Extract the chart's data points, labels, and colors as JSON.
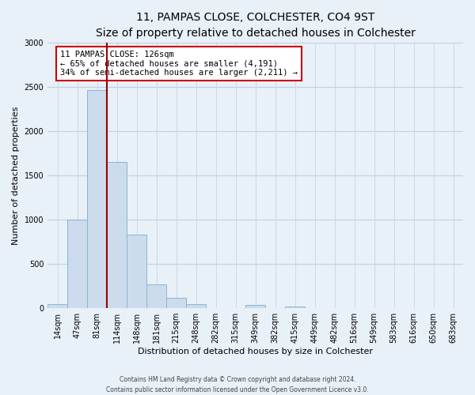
{
  "title": "11, PAMPAS CLOSE, COLCHESTER, CO4 9ST",
  "subtitle": "Size of property relative to detached houses in Colchester",
  "xlabel": "Distribution of detached houses by size in Colchester",
  "ylabel": "Number of detached properties",
  "bar_labels": [
    "14sqm",
    "47sqm",
    "81sqm",
    "114sqm",
    "148sqm",
    "181sqm",
    "215sqm",
    "248sqm",
    "282sqm",
    "315sqm",
    "349sqm",
    "382sqm",
    "415sqm",
    "449sqm",
    "482sqm",
    "516sqm",
    "549sqm",
    "583sqm",
    "616sqm",
    "650sqm",
    "683sqm"
  ],
  "bar_values": [
    50,
    1000,
    2460,
    1650,
    830,
    270,
    120,
    50,
    0,
    0,
    40,
    0,
    20,
    0,
    0,
    0,
    0,
    0,
    0,
    0,
    0
  ],
  "bar_color": "#ccdcec",
  "bar_edge_color": "#8ab4d4",
  "ylim": [
    0,
    3000
  ],
  "yticks": [
    0,
    500,
    1000,
    1500,
    2000,
    2500,
    3000
  ],
  "property_line_x": 3.0,
  "property_line_color": "#990000",
  "annotation_title": "11 PAMPAS CLOSE: 126sqm",
  "annotation_line1": "← 65% of detached houses are smaller (4,191)",
  "annotation_line2": "34% of semi-detached houses are larger (2,211) →",
  "annotation_box_facecolor": "#ffffff",
  "annotation_box_edgecolor": "#cc0000",
  "footer_line1": "Contains HM Land Registry data © Crown copyright and database right 2024.",
  "footer_line2": "Contains public sector information licensed under the Open Government Licence v3.0.",
  "background_color": "#e8f0f8",
  "grid_color": "#c0d0e0",
  "title_fontsize": 10,
  "subtitle_fontsize": 9,
  "ylabel_fontsize": 8,
  "xlabel_fontsize": 8,
  "tick_fontsize": 7
}
